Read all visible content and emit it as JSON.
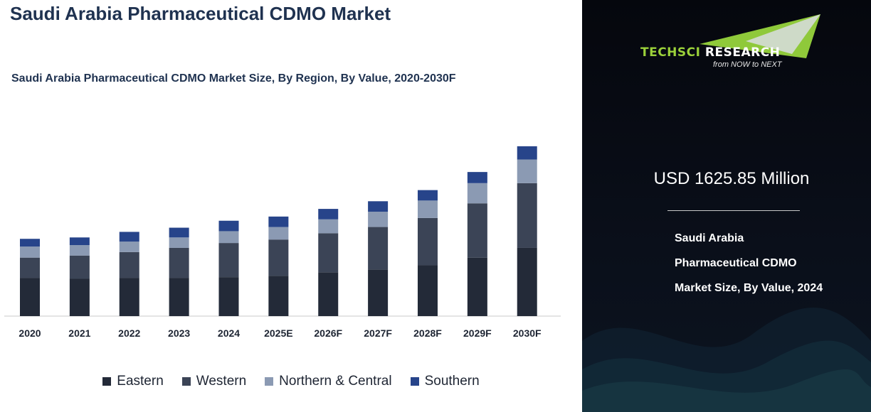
{
  "header": {
    "title": "Saudi Arabia Pharmaceutical CDMO Market"
  },
  "chart_data": {
    "type": "bar",
    "stacked": true,
    "title": "Saudi Arabia Pharmaceutical CDMO Market Size, By Region, By Value, 2020-2030F",
    "xlabel": "",
    "ylabel": "",
    "grid": false,
    "legend_position": "bottom",
    "categories": [
      "2020",
      "2021",
      "2022",
      "2023",
      "2024",
      "2025E",
      "2026F",
      "2027F",
      "2028F",
      "2029F",
      "2030F"
    ],
    "series": [
      {
        "name": "Eastern",
        "color": "#232a38",
        "values": [
          55,
          54,
          55,
          55,
          56,
          58,
          63,
          67,
          73,
          84,
          98
        ]
      },
      {
        "name": "Western",
        "color": "#3b4456",
        "values": [
          29,
          33,
          37,
          43,
          49,
          52,
          56,
          61,
          68,
          78,
          93
        ]
      },
      {
        "name": "Northern & Central",
        "color": "#8b9ab3",
        "values": [
          16,
          15,
          15,
          15,
          17,
          18,
          20,
          22,
          25,
          29,
          34
        ]
      },
      {
        "name": "Southern",
        "color": "#27448a",
        "values": [
          11,
          11,
          14,
          14,
          15,
          15,
          15,
          15,
          15,
          16,
          19
        ]
      }
    ]
  },
  "side_panel": {
    "logo": {
      "tech": "TECHSCI",
      "research": " RESEARCH",
      "tagline": "from NOW to NEXT"
    },
    "headline": "USD 1625.85 Million",
    "description": "Saudi Arabia Pharmaceutical CDMO Market Size, By Value, 2024"
  }
}
